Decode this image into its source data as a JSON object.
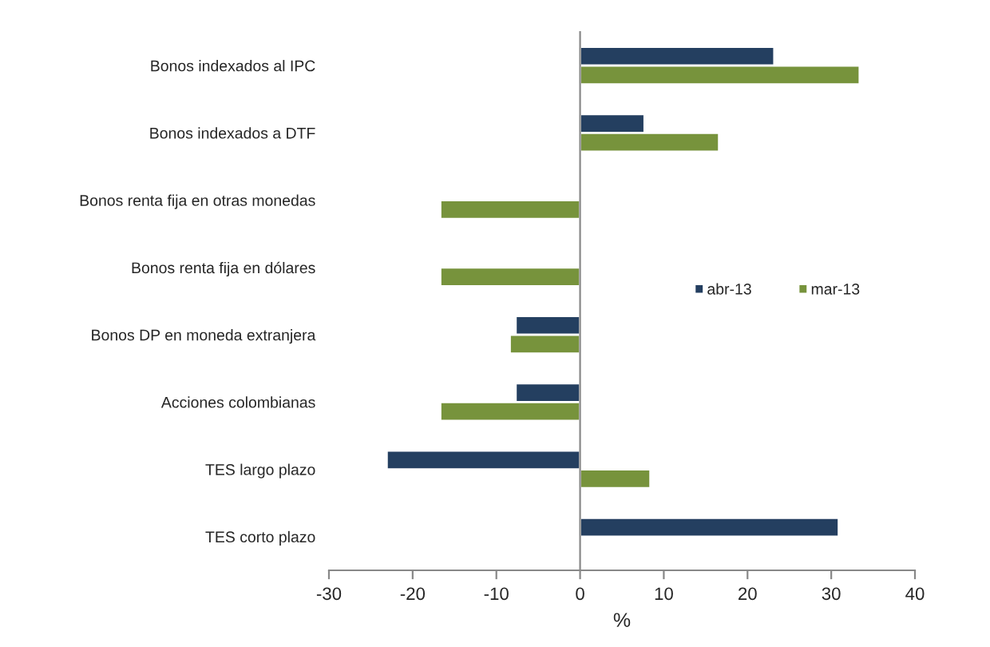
{
  "chart_data": {
    "type": "bar",
    "orientation": "horizontal",
    "xlabel": "%",
    "categories": [
      "Bonos indexados al IPC",
      "Bonos indexados a DTF",
      "Bonos renta fija en otras monedas",
      "Bonos renta fija en dólares",
      "Bonos DP en moneda extranjera",
      "Acciones colombianas",
      "TES largo plazo",
      "TES corto plazo"
    ],
    "series": [
      {
        "name": "abr-13",
        "color": "#243f60",
        "values": [
          23.2,
          7.7,
          null,
          null,
          -7.7,
          -7.7,
          -23.1,
          30.9
        ]
      },
      {
        "name": "mar-13",
        "color": "#77933c",
        "values": [
          33.4,
          16.6,
          -16.7,
          -16.7,
          -8.4,
          -16.7,
          8.4,
          null
        ]
      }
    ],
    "xlim": [
      -30,
      40
    ],
    "xticks": [
      -30,
      -20,
      -10,
      0,
      10,
      20,
      30,
      40
    ],
    "legend": "right"
  }
}
